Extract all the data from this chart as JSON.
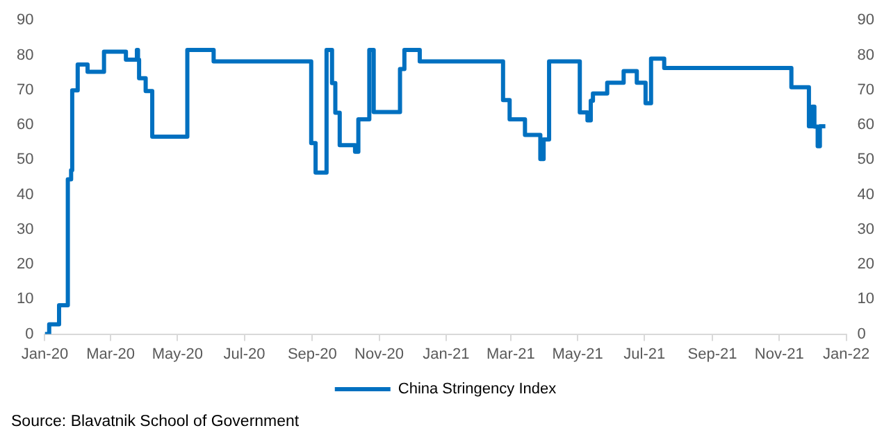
{
  "chart_data": {
    "type": "step",
    "legend": "bottom",
    "grid": false,
    "marker": "none",
    "line_style": "solid",
    "xlim": [
      "2020-01-01",
      "2022-01-01"
    ],
    "xticks": [
      {
        "value": "2020-01-01",
        "label": "Jan-20"
      },
      {
        "value": "2020-03-01",
        "label": "Mar-20"
      },
      {
        "value": "2020-05-01",
        "label": "May-20"
      },
      {
        "value": "2020-07-01",
        "label": "Jul-20"
      },
      {
        "value": "2020-09-01",
        "label": "Sep-20"
      },
      {
        "value": "2020-11-01",
        "label": "Nov-20"
      },
      {
        "value": "2021-01-01",
        "label": "Jan-21"
      },
      {
        "value": "2021-03-01",
        "label": "Mar-21"
      },
      {
        "value": "2021-05-01",
        "label": "May-21"
      },
      {
        "value": "2021-07-01",
        "label": "Jul-21"
      },
      {
        "value": "2021-09-01",
        "label": "Sep-21"
      },
      {
        "value": "2021-11-01",
        "label": "Nov-21"
      },
      {
        "value": "2022-01-01",
        "label": "Jan-22"
      }
    ],
    "ylim": [
      0,
      90
    ],
    "yticks": [
      0,
      10,
      20,
      30,
      40,
      50,
      60,
      70,
      80,
      90
    ],
    "y2lim": [
      0,
      90
    ],
    "y2ticks": [
      0,
      10,
      20,
      30,
      40,
      50,
      60,
      70,
      80,
      90
    ],
    "x": [
      "2020-01-01",
      "2020-01-05",
      "2020-01-14",
      "2020-01-22",
      "2020-01-25",
      "2020-01-26",
      "2020-01-31",
      "2020-02-09",
      "2020-02-24",
      "2020-03-15",
      "2020-03-25",
      "2020-03-26",
      "2020-03-27",
      "2020-04-02",
      "2020-04-08",
      "2020-05-10",
      "2020-06-03",
      "2020-08-31",
      "2020-09-04",
      "2020-09-14",
      "2020-09-19",
      "2020-09-22",
      "2020-09-26",
      "2020-10-10",
      "2020-10-13",
      "2020-10-23",
      "2020-10-27",
      "2020-11-20",
      "2020-11-24",
      "2020-12-08",
      "2021-02-22",
      "2021-02-28",
      "2021-03-14",
      "2021-03-28",
      "2021-03-31",
      "2021-04-05",
      "2021-05-03",
      "2021-05-10",
      "2021-05-13",
      "2021-05-15",
      "2021-05-28",
      "2021-06-12",
      "2021-06-24",
      "2021-07-02",
      "2021-07-07",
      "2021-07-19",
      "2021-11-12",
      "2021-11-28",
      "2021-12-01",
      "2021-12-03",
      "2021-12-06",
      "2021-12-08",
      "2021-12-13"
    ],
    "series": [
      {
        "name": "China Stringency Index",
        "color": "#0070c0",
        "values": [
          0,
          2.8,
          8.3,
          44.4,
          47,
          69.9,
          77.3,
          75.2,
          81,
          78.7,
          81.5,
          78.7,
          73.4,
          69.7,
          56.6,
          81.5,
          78.2,
          54.8,
          46.3,
          81.5,
          72,
          63.5,
          54.2,
          52.3,
          61.6,
          81.5,
          63.7,
          76,
          81.5,
          78.2,
          67.1,
          61.6,
          57.1,
          50.2,
          55.8,
          78.2,
          63.6,
          61.3,
          66.9,
          69,
          72.1,
          75.4,
          72.1,
          66.2,
          79,
          76.3,
          70.8,
          59.6,
          65.2,
          59.5,
          53.9,
          59.6,
          59.6
        ]
      }
    ],
    "annotations": [
      "Source: Blavatnik School of Government"
    ]
  }
}
